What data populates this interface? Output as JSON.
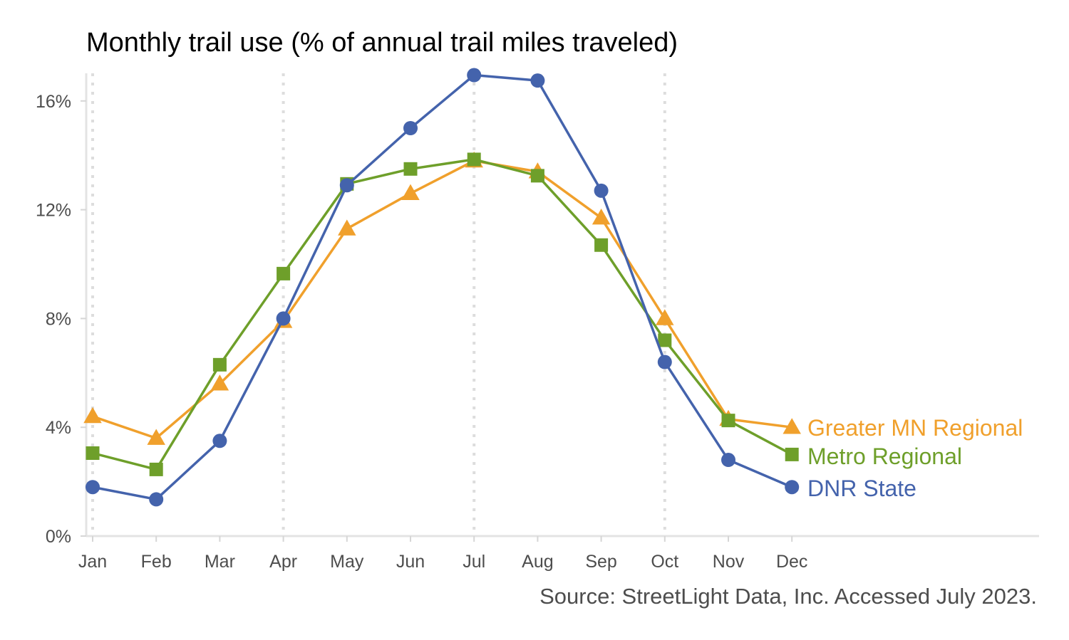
{
  "chart_data": {
    "type": "line",
    "title": "Monthly trail use (% of annual trail miles traveled)",
    "caption": "Source: StreetLight Data, Inc. Accessed July 2023.",
    "categories": [
      "Jan",
      "Feb",
      "Mar",
      "Apr",
      "May",
      "Jun",
      "Jul",
      "Aug",
      "Sep",
      "Oct",
      "Nov",
      "Dec"
    ],
    "ylim": [
      0,
      17
    ],
    "yticks": [
      0,
      4,
      8,
      12,
      16
    ],
    "ytick_labels": [
      "0%",
      "4%",
      "8%",
      "12%",
      "16%"
    ],
    "highlight_months": [
      "Jan",
      "Apr",
      "Jul",
      "Oct"
    ],
    "legend_placement": "direct labels at right end of lines",
    "series": [
      {
        "name": "Greater MN Regional",
        "color": "#F0A02C",
        "marker": "triangle",
        "values": [
          4.4,
          3.6,
          5.6,
          7.9,
          11.3,
          12.6,
          13.8,
          13.4,
          11.7,
          8.0,
          4.3,
          4.0
        ]
      },
      {
        "name": "Metro Regional",
        "color": "#6E9F2A",
        "marker": "square",
        "values": [
          3.05,
          2.45,
          6.3,
          9.65,
          12.95,
          13.5,
          13.85,
          13.25,
          10.7,
          7.2,
          4.25,
          3.0
        ]
      },
      {
        "name": "DNR State",
        "color": "#4463AC",
        "marker": "circle",
        "values": [
          1.8,
          1.35,
          3.5,
          8.0,
          12.9,
          15.0,
          16.95,
          16.75,
          12.7,
          6.4,
          2.8,
          1.8
        ]
      }
    ]
  }
}
